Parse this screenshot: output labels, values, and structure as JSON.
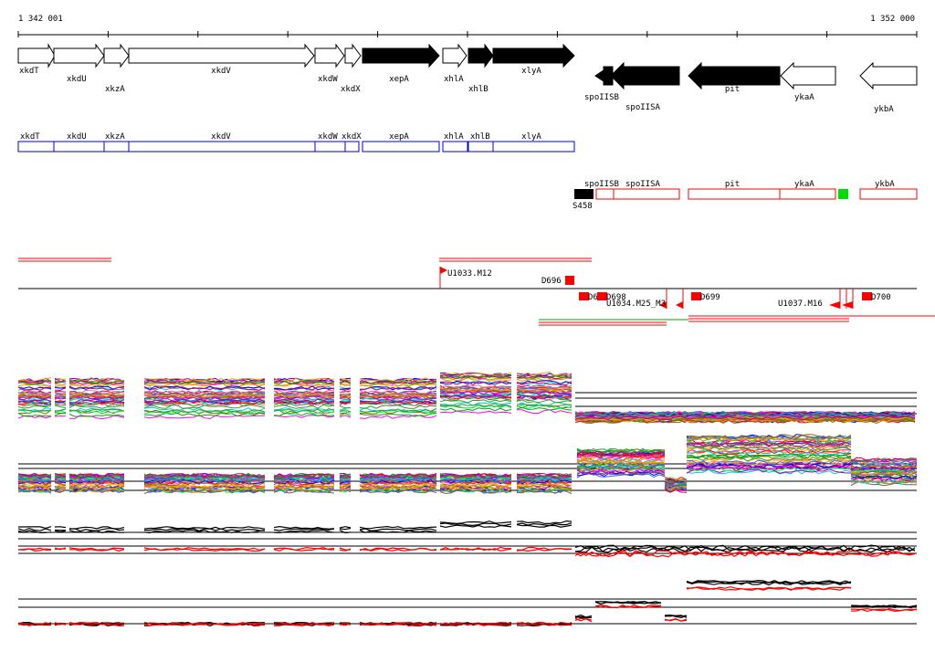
{
  "ruler": {
    "start_label": "1 342 001",
    "end_label": "1 352 000"
  },
  "genes_top": [
    {
      "name": "xkdT",
      "strand": "+",
      "fill": "white"
    },
    {
      "name": "xkdU",
      "strand": "+",
      "fill": "white"
    },
    {
      "name": "xkzA",
      "strand": "+",
      "fill": "white"
    },
    {
      "name": "xkdV",
      "strand": "+",
      "fill": "white"
    },
    {
      "name": "xkdW",
      "strand": "+",
      "fill": "white"
    },
    {
      "name": "xkdX",
      "strand": "+",
      "fill": "white"
    },
    {
      "name": "xepA",
      "strand": "+",
      "fill": "black"
    },
    {
      "name": "xhlA",
      "strand": "+",
      "fill": "white"
    },
    {
      "name": "xhlB",
      "strand": "+",
      "fill": "black"
    },
    {
      "name": "xlyA",
      "strand": "+",
      "fill": "black"
    },
    {
      "name": "spoIISB",
      "strand": "-",
      "fill": "black"
    },
    {
      "name": "spoIISA",
      "strand": "-",
      "fill": "black"
    },
    {
      "name": "pit",
      "strand": "-",
      "fill": "black"
    },
    {
      "name": "ykaA",
      "strand": "-",
      "fill": "white"
    },
    {
      "name": "ykbA",
      "strand": "-",
      "fill": "white"
    }
  ],
  "blue_boxes": [
    "xkdT",
    "xkdU",
    "xkzA",
    "xkdV",
    "xkdW",
    "xkdX",
    "xepA",
    "xhlA",
    "xhlB",
    "xlyA"
  ],
  "red_boxes": [
    "spoIISB",
    "spoIISA",
    "pit",
    "ykaA",
    "ykbA"
  ],
  "small_labels": {
    "s458": "S458"
  },
  "probes": [
    "U1033.M12",
    "D696",
    "D6",
    "D698",
    "U1034.M25_M3",
    "D699",
    "U1037.M16",
    "D700"
  ],
  "colors": {
    "red": "#ff0000",
    "blue": "#0000cc",
    "green": "#00dd00"
  }
}
